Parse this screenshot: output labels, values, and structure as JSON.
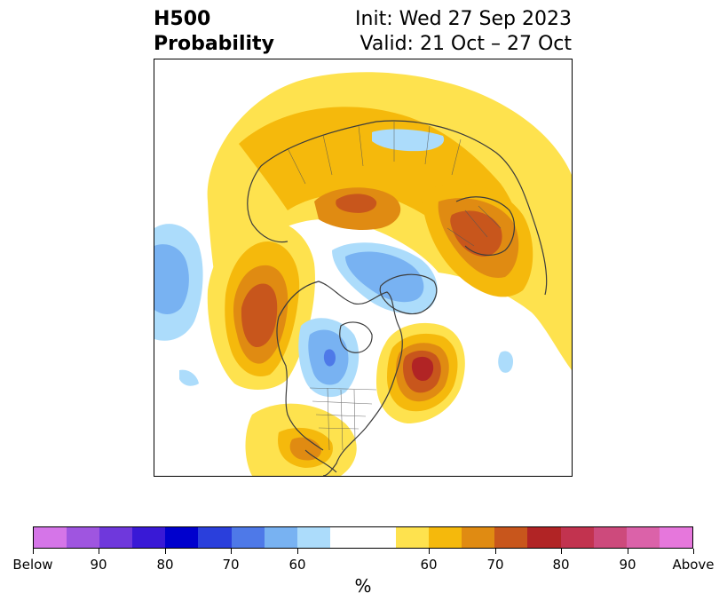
{
  "title": {
    "left_line1": "H500",
    "left_line2": "Probability",
    "right_line1": "Init: Wed 27 Sep 2023",
    "right_line2": "Valid: 21 Oct – 27 Oct"
  },
  "colorbar": {
    "unit": "%",
    "segments": [
      {
        "color": "#d575e8",
        "width": 1
      },
      {
        "color": "#9f55e0",
        "width": 1
      },
      {
        "color": "#6f38dc",
        "width": 1
      },
      {
        "color": "#3919d6",
        "width": 1
      },
      {
        "color": "#0000cd",
        "width": 1
      },
      {
        "color": "#2a3fdc",
        "width": 1
      },
      {
        "color": "#4e79e8",
        "width": 1
      },
      {
        "color": "#78b2f2",
        "width": 1
      },
      {
        "color": "#acdcfb",
        "width": 1
      },
      {
        "color": "#ffffff",
        "width": 2
      },
      {
        "color": "#fee24e",
        "width": 1
      },
      {
        "color": "#f5b90c",
        "width": 1
      },
      {
        "color": "#e08b12",
        "width": 1
      },
      {
        "color": "#c8561c",
        "width": 1
      },
      {
        "color": "#b12425",
        "width": 1
      },
      {
        "color": "#c2334f",
        "width": 1
      },
      {
        "color": "#cd4a7c",
        "width": 1
      },
      {
        "color": "#db62a9",
        "width": 1
      },
      {
        "color": "#e677dc",
        "width": 1
      }
    ],
    "tick_labels": [
      "Below",
      "90",
      "80",
      "70",
      "60",
      "60",
      "70",
      "80",
      "90",
      "Above"
    ]
  },
  "map": {
    "projection": "north-polar-stereographic",
    "legend_meaning": "probability of above/below normal 500 hPa height"
  }
}
